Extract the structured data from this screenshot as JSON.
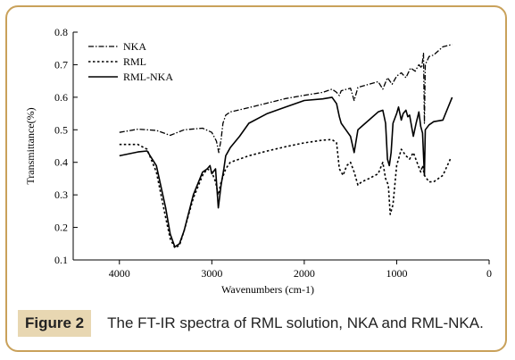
{
  "chart_data": {
    "type": "line",
    "xlabel": "Wavenumbers (cm-1)",
    "ylabel": "Transmittance(%)",
    "xlim": [
      4500,
      0
    ],
    "ylim": [
      0.1,
      0.8
    ],
    "x_ticks": [
      "4000",
      "3000",
      "2000",
      "1000",
      "0"
    ],
    "y_ticks": [
      "0.1",
      "0.2",
      "0.3",
      "0.4",
      "0.5",
      "0.6",
      "0.7",
      "0.8"
    ],
    "grid": false,
    "legend": "top-left",
    "series": [
      {
        "name": "NKA",
        "style": "dash-dot",
        "points": [
          [
            4000,
            0.492
          ],
          [
            3800,
            0.502
          ],
          [
            3600,
            0.498
          ],
          [
            3450,
            0.483
          ],
          [
            3300,
            0.5
          ],
          [
            3100,
            0.505
          ],
          [
            3000,
            0.492
          ],
          [
            2950,
            0.465
          ],
          [
            2925,
            0.43
          ],
          [
            2900,
            0.47
          ],
          [
            2880,
            0.52
          ],
          [
            2850,
            0.545
          ],
          [
            2800,
            0.555
          ],
          [
            2600,
            0.568
          ],
          [
            2400,
            0.582
          ],
          [
            2200,
            0.596
          ],
          [
            2000,
            0.606
          ],
          [
            1800,
            0.615
          ],
          [
            1700,
            0.625
          ],
          [
            1650,
            0.615
          ],
          [
            1620,
            0.605
          ],
          [
            1600,
            0.62
          ],
          [
            1500,
            0.628
          ],
          [
            1460,
            0.59
          ],
          [
            1420,
            0.63
          ],
          [
            1300,
            0.64
          ],
          [
            1200,
            0.648
          ],
          [
            1150,
            0.625
          ],
          [
            1100,
            0.66
          ],
          [
            1050,
            0.64
          ],
          [
            1000,
            0.665
          ],
          [
            950,
            0.675
          ],
          [
            900,
            0.66
          ],
          [
            850,
            0.69
          ],
          [
            800,
            0.68
          ],
          [
            760,
            0.7
          ],
          [
            730,
            0.69
          ],
          [
            710,
            0.735
          ],
          [
            700,
            0.52
          ],
          [
            690,
            0.7
          ],
          [
            650,
            0.725
          ],
          [
            600,
            0.73
          ],
          [
            500,
            0.755
          ],
          [
            400,
            0.762
          ]
        ]
      },
      {
        "name": "RML",
        "style": "dotted",
        "points": [
          [
            4000,
            0.455
          ],
          [
            3800,
            0.455
          ],
          [
            3700,
            0.44
          ],
          [
            3600,
            0.37
          ],
          [
            3500,
            0.23
          ],
          [
            3450,
            0.165
          ],
          [
            3400,
            0.137
          ],
          [
            3350,
            0.145
          ],
          [
            3300,
            0.19
          ],
          [
            3200,
            0.29
          ],
          [
            3100,
            0.36
          ],
          [
            3050,
            0.38
          ],
          [
            3000,
            0.37
          ],
          [
            2960,
            0.34
          ],
          [
            2930,
            0.3
          ],
          [
            2900,
            0.34
          ],
          [
            2850,
            0.38
          ],
          [
            2800,
            0.4
          ],
          [
            2600,
            0.42
          ],
          [
            2400,
            0.435
          ],
          [
            2200,
            0.448
          ],
          [
            2000,
            0.46
          ],
          [
            1800,
            0.468
          ],
          [
            1700,
            0.47
          ],
          [
            1650,
            0.46
          ],
          [
            1620,
            0.38
          ],
          [
            1580,
            0.36
          ],
          [
            1540,
            0.39
          ],
          [
            1500,
            0.4
          ],
          [
            1460,
            0.37
          ],
          [
            1420,
            0.33
          ],
          [
            1380,
            0.34
          ],
          [
            1300,
            0.35
          ],
          [
            1200,
            0.365
          ],
          [
            1150,
            0.4
          ],
          [
            1120,
            0.35
          ],
          [
            1090,
            0.33
          ],
          [
            1070,
            0.24
          ],
          [
            1040,
            0.27
          ],
          [
            1000,
            0.39
          ],
          [
            950,
            0.44
          ],
          [
            900,
            0.42
          ],
          [
            860,
            0.41
          ],
          [
            820,
            0.43
          ],
          [
            780,
            0.4
          ],
          [
            740,
            0.37
          ],
          [
            720,
            0.39
          ],
          [
            700,
            0.36
          ],
          [
            650,
            0.34
          ],
          [
            600,
            0.34
          ],
          [
            500,
            0.36
          ],
          [
            420,
            0.41
          ]
        ]
      },
      {
        "name": "RML-NKA",
        "style": "solid",
        "points": [
          [
            4000,
            0.42
          ],
          [
            3800,
            0.432
          ],
          [
            3700,
            0.435
          ],
          [
            3600,
            0.39
          ],
          [
            3500,
            0.26
          ],
          [
            3450,
            0.18
          ],
          [
            3400,
            0.14
          ],
          [
            3350,
            0.15
          ],
          [
            3300,
            0.19
          ],
          [
            3200,
            0.3
          ],
          [
            3100,
            0.37
          ],
          [
            3050,
            0.38
          ],
          [
            3020,
            0.39
          ],
          [
            3000,
            0.365
          ],
          [
            2960,
            0.38
          ],
          [
            2930,
            0.26
          ],
          [
            2900,
            0.33
          ],
          [
            2870,
            0.38
          ],
          [
            2850,
            0.42
          ],
          [
            2800,
            0.445
          ],
          [
            2700,
            0.48
          ],
          [
            2600,
            0.52
          ],
          [
            2400,
            0.55
          ],
          [
            2200,
            0.57
          ],
          [
            2000,
            0.59
          ],
          [
            1800,
            0.595
          ],
          [
            1700,
            0.6
          ],
          [
            1650,
            0.58
          ],
          [
            1620,
            0.54
          ],
          [
            1600,
            0.52
          ],
          [
            1550,
            0.5
          ],
          [
            1500,
            0.48
          ],
          [
            1460,
            0.43
          ],
          [
            1420,
            0.5
          ],
          [
            1380,
            0.51
          ],
          [
            1300,
            0.53
          ],
          [
            1200,
            0.555
          ],
          [
            1150,
            0.56
          ],
          [
            1120,
            0.52
          ],
          [
            1100,
            0.41
          ],
          [
            1080,
            0.39
          ],
          [
            1060,
            0.43
          ],
          [
            1040,
            0.52
          ],
          [
            1000,
            0.55
          ],
          [
            980,
            0.57
          ],
          [
            950,
            0.53
          ],
          [
            930,
            0.55
          ],
          [
            900,
            0.56
          ],
          [
            880,
            0.54
          ],
          [
            860,
            0.545
          ],
          [
            820,
            0.48
          ],
          [
            790,
            0.52
          ],
          [
            760,
            0.555
          ],
          [
            740,
            0.51
          ],
          [
            720,
            0.49
          ],
          [
            700,
            0.36
          ],
          [
            690,
            0.5
          ],
          [
            650,
            0.515
          ],
          [
            600,
            0.525
          ],
          [
            500,
            0.53
          ],
          [
            400,
            0.6
          ]
        ]
      }
    ]
  },
  "caption": {
    "figure_label": "Figure 2",
    "text": "The FT-IR spectra of RML solution, NKA and RML-NKA."
  }
}
